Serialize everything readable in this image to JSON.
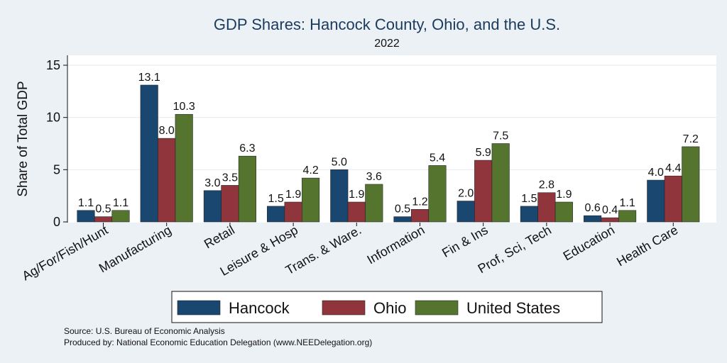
{
  "chart_data": {
    "type": "bar",
    "title": "GDP Shares: Hancock County, Ohio, and the U.S.",
    "subtitle": "2022",
    "xlabel": "",
    "ylabel": "Share of Total GDP",
    "ylim": [
      0,
      16
    ],
    "yticks": [
      0,
      5,
      10,
      15
    ],
    "grid": true,
    "legend_position": "bottom",
    "categories": [
      "Ag/For/Fish/Hunt",
      "Manufacturing",
      "Retail",
      "Leisure & Hosp",
      "Trans. & Ware.",
      "Information",
      "Fin & Ins",
      "Prof, Sci, Tech",
      "Education",
      "Health Care"
    ],
    "series": [
      {
        "name": "Hancock",
        "color": "#1a476f",
        "values": [
          1.1,
          13.1,
          3.0,
          1.5,
          5.0,
          0.5,
          2.0,
          1.5,
          0.6,
          4.0
        ],
        "labels": [
          "1.1",
          "13.1",
          "3.0",
          "1.5",
          "5.0",
          "0.5",
          "2.0",
          "1.5",
          "0.6",
          "4.0"
        ]
      },
      {
        "name": "Ohio",
        "color": "#90353b",
        "values": [
          0.5,
          8.0,
          3.5,
          1.9,
          1.9,
          1.2,
          5.9,
          2.8,
          0.4,
          4.4
        ],
        "labels": [
          "0.5",
          "8.0",
          "3.5",
          "1.9",
          "1.9",
          "1.2",
          "5.9",
          "2.8",
          "0.4",
          "4.4"
        ]
      },
      {
        "name": "United States",
        "color": "#55752f",
        "values": [
          1.1,
          10.3,
          6.3,
          4.2,
          3.6,
          5.4,
          7.5,
          1.9,
          1.1,
          7.2
        ],
        "labels": [
          "1.1",
          "10.3",
          "6.3",
          "4.2",
          "3.6",
          "5.4",
          "7.5",
          "1.9",
          "1.1",
          "7.2"
        ]
      }
    ],
    "notes": [
      "Source: U.S. Bureau of Economic Analysis",
      "Produced by: National Economic Education Delegation (www.NEEDelegation.org)"
    ]
  }
}
